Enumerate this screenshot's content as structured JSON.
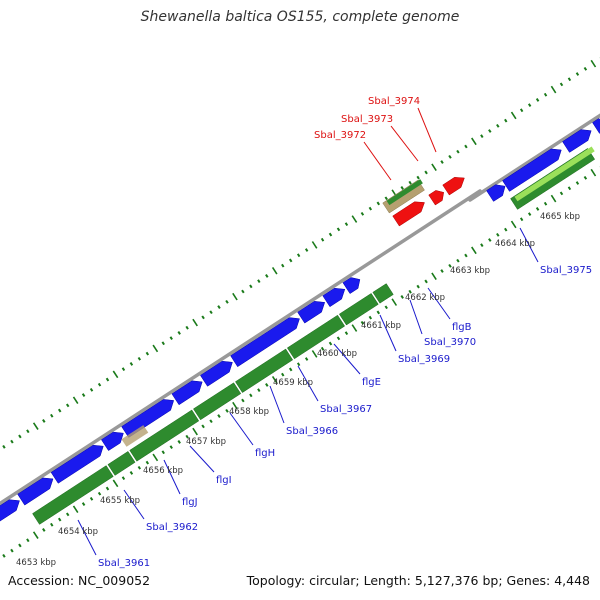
{
  "title": "Shewanella baltica OS155, complete genome",
  "footer": {
    "accession": "Accession: NC_009052",
    "summary": "Topology: circular; Length: 5,127,376 bp; Genes: 4,448"
  },
  "colors": {
    "forward_cds": "#1a1aee",
    "reverse_cds": "#2e8b2e",
    "rna_gene": "#ee1111",
    "pseudo_gene": "#b5a070",
    "light_green_feature": "#9be05a",
    "backbone": "#999999",
    "tick_mark": "#1a7a1a",
    "label_forward": "#1a1acc",
    "label_reverse": "#dd1111"
  },
  "tick_labels": [
    "4653 kbp",
    "4654 kbp",
    "4655 kbp",
    "4656 kbp",
    "4657 kbp",
    "4658 kbp",
    "4659 kbp",
    "4660 kbp",
    "4661 kbp",
    "4662 kbp",
    "4663 kbp",
    "4664 kbp",
    "4665 kbp"
  ],
  "gene_labels_lower": [
    "Sbal_3961",
    "Sbal_3962",
    "flgJ",
    "flgI",
    "flgH",
    "Sbal_3966",
    "Sbal_3967",
    "flgE",
    "Sbal_3969",
    "Sbal_3970",
    "flgB",
    "Sbal_3975"
  ],
  "gene_labels_upper": [
    "Sbal_3972",
    "Sbal_3973",
    "Sbal_3974"
  ]
}
